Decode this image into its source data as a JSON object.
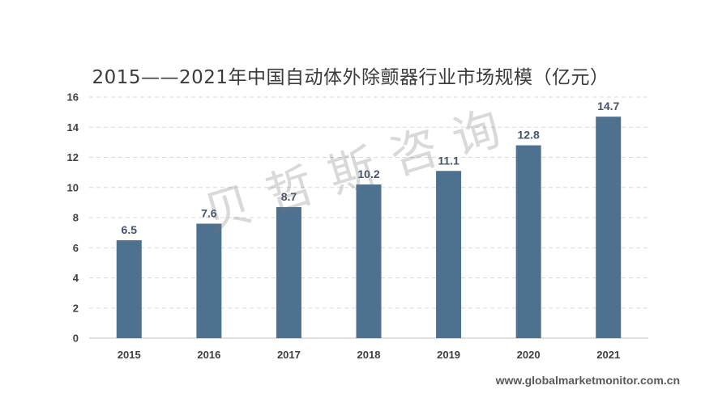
{
  "chart_data": {
    "type": "bar",
    "title": "2015——2021年中国自动体外除颤器行业市场规模（亿元）",
    "categories": [
      "2015",
      "2016",
      "2017",
      "2018",
      "2019",
      "2020",
      "2021"
    ],
    "values": [
      6.5,
      7.6,
      8.7,
      10.2,
      11.1,
      12.8,
      14.7
    ],
    "data_labels": [
      "6.5",
      "7.6",
      "8.7",
      "10.2",
      "11.1",
      "12.8",
      "14.7"
    ],
    "yticks": [
      0,
      2,
      4,
      6,
      8,
      10,
      12,
      14,
      16
    ],
    "ylim": [
      0,
      16
    ],
    "xlabel": "",
    "ylabel": "",
    "grid": true,
    "legend": "none",
    "colors": {
      "bar": "#4e7190",
      "grid": "#d9d9d9",
      "axis": "#bfbfbf",
      "data_label": "#44546a",
      "tick": "#3f3f3f"
    }
  },
  "watermark": "贝哲斯咨询",
  "source": "www.globalmarketmonitor.com.cn"
}
